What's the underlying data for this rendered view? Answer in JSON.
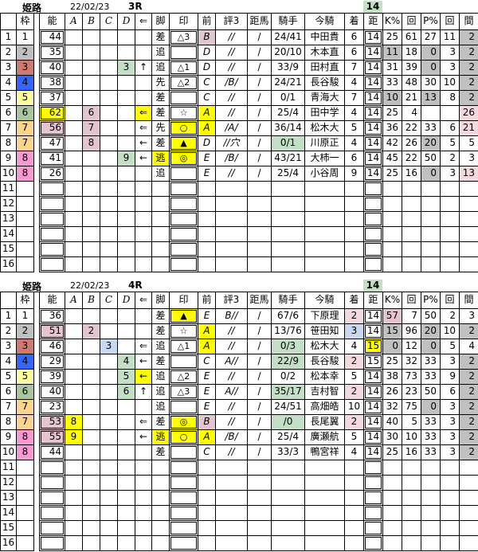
{
  "colors": {
    "y": "#FFFF00",
    "p": "#E2C5CF",
    "lp": "#F1D9DF",
    "g": "#C0C0C0",
    "gr": "#C3DFC5",
    "lb": "#C8D8F0",
    "w1": "#FFFFFF",
    "w2": "#C0C0C0",
    "w3": "#CD7B70",
    "w4": "#3366FF",
    "w5": "#FFFF9E",
    "w6": "#ABC69E",
    "w7": "#FBD58E",
    "w8": "#F79AD2",
    "badge": "#C3DFC5"
  },
  "tables": [
    {
      "venue": "姫路",
      "date": "22/02/23",
      "race": "3R",
      "distance_badge": "14",
      "columns": [
        "",
        "枠",
        "",
        "能",
        "A",
        "B",
        "C",
        "D",
        "⇐",
        "脚",
        "印",
        "前",
        "評3",
        "距馬",
        "騎手",
        "今騎",
        "着",
        "距",
        "K%",
        "回",
        "P%",
        "回",
        "間"
      ],
      "rows": [
        [
          "1",
          {
            "t": "1",
            "c": "w1"
          },
          "",
          "44",
          "",
          "",
          "",
          "",
          "",
          "差",
          "△3",
          {
            "t": "B",
            "c": "p"
          },
          "//",
          "/",
          "24/41",
          "中田貴",
          "6",
          "14",
          "25",
          "61",
          "27",
          "11",
          {
            "t": "2",
            "c": "g"
          }
        ],
        [
          "2",
          {
            "t": "2",
            "c": "w2"
          },
          "",
          "35",
          "",
          "",
          "",
          "",
          "",
          "追",
          "",
          "D",
          "//",
          "/",
          "20/10",
          "木本直",
          "6",
          "14",
          {
            "t": "11",
            "c": "g"
          },
          "18",
          {
            "t": "0",
            "c": "g"
          },
          "3",
          {
            "t": "2",
            "c": "g"
          }
        ],
        [
          "3",
          {
            "t": "3",
            "c": "w3"
          },
          "",
          "40",
          "",
          "",
          "",
          {
            "t": "3",
            "c": "gr"
          },
          "↑",
          "追",
          "△1",
          "D",
          "//",
          "/",
          "33/9",
          "田村直",
          "7",
          "14",
          "31",
          "39",
          {
            "t": "0",
            "c": "g"
          },
          "3",
          {
            "t": "2",
            "c": "g"
          }
        ],
        [
          "4",
          {
            "t": "4",
            "c": "w4"
          },
          "",
          "38",
          "",
          "",
          "",
          "",
          "",
          "先",
          "△2",
          "C",
          "/B/",
          "/",
          "24/21",
          "長谷駿",
          "4",
          "14",
          "33",
          "48",
          "30",
          "10",
          {
            "t": "2",
            "c": "g"
          }
        ],
        [
          "5",
          {
            "t": "5",
            "c": "w5"
          },
          "",
          "37",
          "",
          "",
          "",
          "",
          "",
          "差",
          "",
          "C",
          "//",
          "/",
          "0/1",
          "青海大",
          "7",
          "14",
          {
            "t": "10",
            "c": "g"
          },
          "21",
          {
            "t": "13",
            "c": "g"
          },
          "8",
          {
            "t": "2",
            "c": "g"
          }
        ],
        [
          "6",
          {
            "t": "6",
            "c": "w6"
          },
          "",
          {
            "t": "62",
            "c": "y"
          },
          "",
          {
            "t": "6",
            "c": "p"
          },
          "",
          "",
          {
            "t": "⇐",
            "c": "y"
          },
          "差",
          "☆",
          {
            "t": "A",
            "c": "y"
          },
          "//",
          "/",
          "25/4",
          "田中学",
          "4",
          "14",
          "25",
          "4",
          "",
          "",
          {
            "t": "26",
            "c": "lp"
          }
        ],
        [
          "7",
          {
            "t": "7",
            "c": "w7"
          },
          "",
          {
            "t": "56",
            "c": "p"
          },
          "",
          {
            "t": "7",
            "c": "p"
          },
          "",
          "",
          "⇐",
          "先",
          {
            "t": "○",
            "c": "y"
          },
          {
            "t": "A",
            "c": "y"
          },
          "/A/",
          "/",
          "36/14",
          "松木大",
          "5",
          "14",
          "36",
          "22",
          "33",
          "6",
          {
            "t": "21",
            "c": "lp"
          }
        ],
        [
          "8",
          {
            "t": "7",
            "c": "w7"
          },
          "",
          "47",
          "",
          {
            "t": "8",
            "c": "p"
          },
          "",
          "",
          "←",
          "差",
          {
            "t": "▲",
            "c": "y"
          },
          "D",
          "//穴",
          "/",
          {
            "t": "0/1",
            "c": "gr"
          },
          "川原正",
          "4",
          "14",
          "42",
          "26",
          {
            "t": "20",
            "c": "g"
          },
          "5",
          "5"
        ],
        [
          "9",
          {
            "t": "8",
            "c": "w8"
          },
          "",
          "41",
          "",
          "",
          "",
          {
            "t": "9",
            "c": "gr"
          },
          "←",
          {
            "t": "逃",
            "c": "y"
          },
          {
            "t": "◎",
            "c": "y"
          },
          "E",
          "/B/",
          "/",
          "43/21",
          "大柿一",
          "6",
          "14",
          "45",
          "22",
          "50",
          "2",
          "3"
        ],
        [
          "10",
          {
            "t": "8",
            "c": "w8"
          },
          "",
          "26",
          "",
          "",
          "",
          "",
          "",
          "追",
          "",
          "E",
          "//",
          "/",
          "25/4",
          "小谷周",
          "9",
          "14",
          "25",
          "16",
          {
            "t": "0",
            "c": "g"
          },
          "3",
          {
            "t": "13",
            "c": "lp"
          }
        ],
        [
          "11",
          "",
          "",
          "",
          "",
          "",
          "",
          "",
          "",
          "",
          "",
          "",
          "",
          "",
          "",
          "",
          "",
          "",
          "",
          "",
          "",
          "",
          ""
        ],
        [
          "12",
          "",
          "",
          "",
          "",
          "",
          "",
          "",
          "",
          "",
          "",
          "",
          "",
          "",
          "",
          "",
          "",
          "",
          "",
          "",
          "",
          "",
          ""
        ],
        [
          "13",
          "",
          "",
          "",
          "",
          "",
          "",
          "",
          "",
          "",
          "",
          "",
          "",
          "",
          "",
          "",
          "",
          "",
          "",
          "",
          "",
          "",
          ""
        ],
        [
          "14",
          "",
          "",
          "",
          "",
          "",
          "",
          "",
          "",
          "",
          "",
          "",
          "",
          "",
          "",
          "",
          "",
          "",
          "",
          "",
          "",
          "",
          ""
        ],
        [
          "15",
          "",
          "",
          "",
          "",
          "",
          "",
          "",
          "",
          "",
          "",
          "",
          "",
          "",
          "",
          "",
          "",
          "",
          "",
          "",
          "",
          "",
          ""
        ],
        [
          "16",
          "",
          "",
          "",
          "",
          "",
          "",
          "",
          "",
          "",
          "",
          "",
          "",
          "",
          "",
          "",
          "",
          "",
          "",
          "",
          "",
          "",
          ""
        ]
      ]
    },
    {
      "venue": "姫路",
      "date": "22/02/23",
      "race": "4R",
      "distance_badge": "14",
      "columns": [
        "",
        "枠",
        "",
        "能",
        "A",
        "B",
        "C",
        "D",
        "⇐",
        "脚",
        "印",
        "前",
        "評3",
        "距馬",
        "騎手",
        "今騎",
        "着",
        "距",
        "K%",
        "回",
        "P%",
        "回",
        "間"
      ],
      "rows": [
        [
          "1",
          {
            "t": "1",
            "c": "w1"
          },
          "",
          "36",
          "",
          "",
          "",
          "",
          "",
          "差",
          {
            "t": "▲",
            "c": "y"
          },
          "E",
          "B//",
          "/",
          "67/6",
          "下原理",
          {
            "t": "2",
            "c": "lp"
          },
          "14",
          {
            "t": "57",
            "c": "p"
          },
          "7",
          "50",
          "2",
          "3"
        ],
        [
          "2",
          {
            "t": "2",
            "c": "w2"
          },
          "",
          {
            "t": "51",
            "c": "p"
          },
          "",
          {
            "t": "2",
            "c": "p"
          },
          "",
          "",
          "",
          "差",
          "☆",
          {
            "t": "A",
            "c": "y"
          },
          "//",
          "/",
          "13/76",
          "笹田知",
          {
            "t": "3",
            "c": "lb"
          },
          "14",
          {
            "t": "15",
            "c": "g"
          },
          "96",
          {
            "t": "20",
            "c": "g"
          },
          "10",
          {
            "t": "2",
            "c": "g"
          }
        ],
        [
          "3",
          {
            "t": "3",
            "c": "w3"
          },
          "",
          "46",
          "",
          "",
          {
            "t": "3",
            "c": "lb"
          },
          "",
          "⇐",
          "追",
          "△1",
          {
            "t": "A",
            "c": "y"
          },
          "//",
          "/",
          {
            "t": "0/3",
            "c": "gr"
          },
          "松木大",
          "4",
          {
            "t": "15",
            "c": "y"
          },
          {
            "t": "0",
            "c": "g"
          },
          "12",
          {
            "t": "0",
            "c": "g"
          },
          "5",
          "4"
        ],
        [
          "4",
          {
            "t": "4",
            "c": "w4"
          },
          "",
          "29",
          "",
          "",
          "",
          {
            "t": "4",
            "c": "gr"
          },
          "←",
          "差",
          "",
          "C",
          "A//",
          "/",
          {
            "t": "22/9",
            "c": "gr"
          },
          "長谷駿",
          {
            "t": "2",
            "c": "lp"
          },
          "15",
          "25",
          "32",
          "33",
          "3",
          {
            "t": "2",
            "c": "g"
          }
        ],
        [
          "5",
          {
            "t": "5",
            "c": "w5"
          },
          "",
          "39",
          "",
          "",
          "",
          {
            "t": "5",
            "c": "gr"
          },
          {
            "t": "←",
            "c": "y"
          },
          "追",
          "△2",
          "E",
          "//",
          "/",
          "0/2",
          "松本幸",
          "5",
          "14",
          "38",
          "73",
          "33",
          "9",
          {
            "t": "2",
            "c": "g"
          }
        ],
        [
          "6",
          {
            "t": "6",
            "c": "w6"
          },
          "",
          "40",
          "",
          "",
          "",
          {
            "t": "6",
            "c": "gr"
          },
          "↑",
          "追",
          "△3",
          "E",
          "A//",
          "/",
          {
            "t": "35/17",
            "c": "gr"
          },
          "吉村智",
          {
            "t": "2",
            "c": "lp"
          },
          "14",
          "26",
          "23",
          "50",
          "6",
          {
            "t": "2",
            "c": "g"
          }
        ],
        [
          "7",
          {
            "t": "7",
            "c": "w7"
          },
          "",
          "23",
          "",
          "",
          "",
          "",
          "",
          "追",
          "",
          "E",
          "//",
          "/",
          "24/51",
          "高畑皓",
          "10",
          "14",
          "32",
          "75",
          {
            "t": "0",
            "c": "g"
          },
          "3",
          {
            "t": "2",
            "c": "g"
          }
        ],
        [
          "8",
          {
            "t": "7",
            "c": "w7"
          },
          "",
          {
            "t": "53",
            "c": "p"
          },
          {
            "t": "8",
            "c": "y"
          },
          "",
          "",
          "",
          "⇐",
          "差",
          {
            "t": "◎",
            "c": "y"
          },
          {
            "t": "B",
            "c": "p"
          },
          "//",
          "/",
          {
            "t": "/0",
            "c": "gr"
          },
          "長尾翼",
          {
            "t": "2",
            "c": "lp"
          },
          "14",
          "40",
          "5",
          "33",
          "3",
          {
            "t": "2",
            "c": "g"
          }
        ],
        [
          "9",
          {
            "t": "8",
            "c": "w8"
          },
          "",
          {
            "t": "55",
            "c": "p"
          },
          {
            "t": "9",
            "c": "y"
          },
          "",
          "",
          "",
          "←",
          {
            "t": "逃",
            "c": "y"
          },
          {
            "t": "○",
            "c": "y"
          },
          {
            "t": "A",
            "c": "y"
          },
          "/B/",
          "/",
          "25/4",
          "廣瀬航",
          "5",
          "14",
          "30",
          "10",
          "33",
          "3",
          {
            "t": "2",
            "c": "g"
          }
        ],
        [
          "10",
          {
            "t": "8",
            "c": "w8"
          },
          "",
          "44",
          "",
          "",
          "",
          "",
          "",
          "差",
          "",
          "C",
          "//",
          "/",
          "33/3",
          "鴨宮祥",
          "4",
          "14",
          "25",
          "16",
          "33",
          "3",
          {
            "t": "2",
            "c": "g"
          }
        ],
        [
          "11",
          "",
          "",
          "",
          "",
          "",
          "",
          "",
          "",
          "",
          "",
          "",
          "",
          "",
          "",
          "",
          "",
          "",
          "",
          "",
          "",
          "",
          ""
        ],
        [
          "12",
          "",
          "",
          "",
          "",
          "",
          "",
          "",
          "",
          "",
          "",
          "",
          "",
          "",
          "",
          "",
          "",
          "",
          "",
          "",
          "",
          "",
          ""
        ],
        [
          "13",
          "",
          "",
          "",
          "",
          "",
          "",
          "",
          "",
          "",
          "",
          "",
          "",
          "",
          "",
          "",
          "",
          "",
          "",
          "",
          "",
          "",
          ""
        ],
        [
          "14",
          "",
          "",
          "",
          "",
          "",
          "",
          "",
          "",
          "",
          "",
          "",
          "",
          "",
          "",
          "",
          "",
          "",
          "",
          "",
          "",
          "",
          ""
        ],
        [
          "15",
          "",
          "",
          "",
          "",
          "",
          "",
          "",
          "",
          "",
          "",
          "",
          "",
          "",
          "",
          "",
          "",
          "",
          "",
          "",
          "",
          "",
          ""
        ],
        [
          "16",
          "",
          "",
          "",
          "",
          "",
          "",
          "",
          "",
          "",
          "",
          "",
          "",
          "",
          "",
          "",
          "",
          "",
          "",
          "",
          "",
          "",
          ""
        ]
      ]
    }
  ]
}
